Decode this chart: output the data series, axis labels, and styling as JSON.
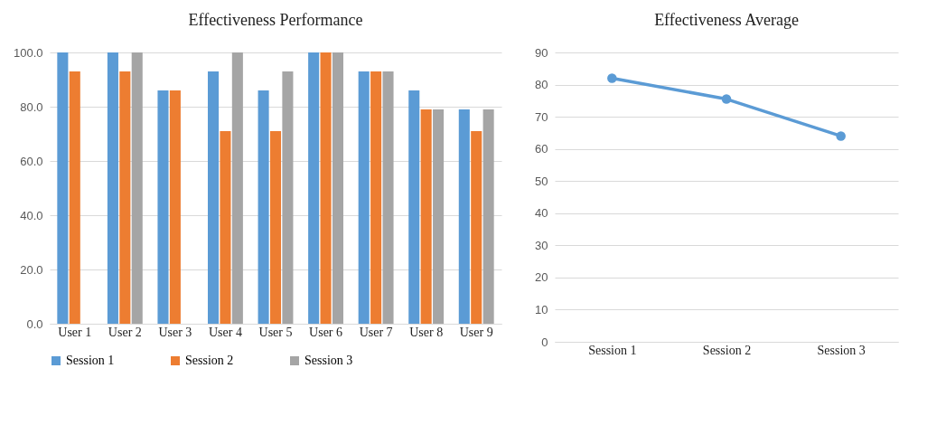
{
  "chart_data": [
    {
      "type": "bar",
      "title": "Effectiveness Performance",
      "categories": [
        "User 1",
        "User 2",
        "User 3",
        "User 4",
        "User 5",
        "User 6",
        "User 7",
        "User 8",
        "User 9"
      ],
      "series": [
        {
          "name": "Session 1",
          "color": "#5b9bd5",
          "values": [
            100,
            100,
            86,
            93,
            86,
            100,
            93,
            86,
            79
          ]
        },
        {
          "name": "Session 2",
          "color": "#ed7d31",
          "values": [
            93,
            93,
            86,
            71,
            71,
            100,
            93,
            79,
            71
          ]
        },
        {
          "name": "Session 3",
          "color": "#a5a5a5",
          "values": [
            0,
            100,
            0,
            100,
            93,
            100,
            93,
            79,
            79
          ]
        }
      ],
      "ylim": [
        0,
        100
      ],
      "yticks": [
        {
          "value": 0,
          "label": "0.0"
        },
        {
          "value": 20,
          "label": "20.0"
        },
        {
          "value": 40,
          "label": "40.0"
        },
        {
          "value": 60,
          "label": "60.0"
        },
        {
          "value": 80,
          "label": "80.0"
        },
        {
          "value": 100,
          "label": "100.0"
        }
      ],
      "grid": "y",
      "legend": "bottom"
    },
    {
      "type": "line",
      "title": "Effectiveness  Average",
      "categories": [
        "Session 1",
        "Session 2",
        "Session 3"
      ],
      "series": [
        {
          "color": "#5b9bd5",
          "values": [
            82,
            75.5,
            64
          ]
        }
      ],
      "ylim": [
        0,
        90
      ],
      "yticks": [
        0,
        10,
        20,
        30,
        40,
        50,
        60,
        70,
        80,
        90
      ],
      "grid": "y",
      "marker": "circle",
      "line_style": "solid"
    }
  ]
}
